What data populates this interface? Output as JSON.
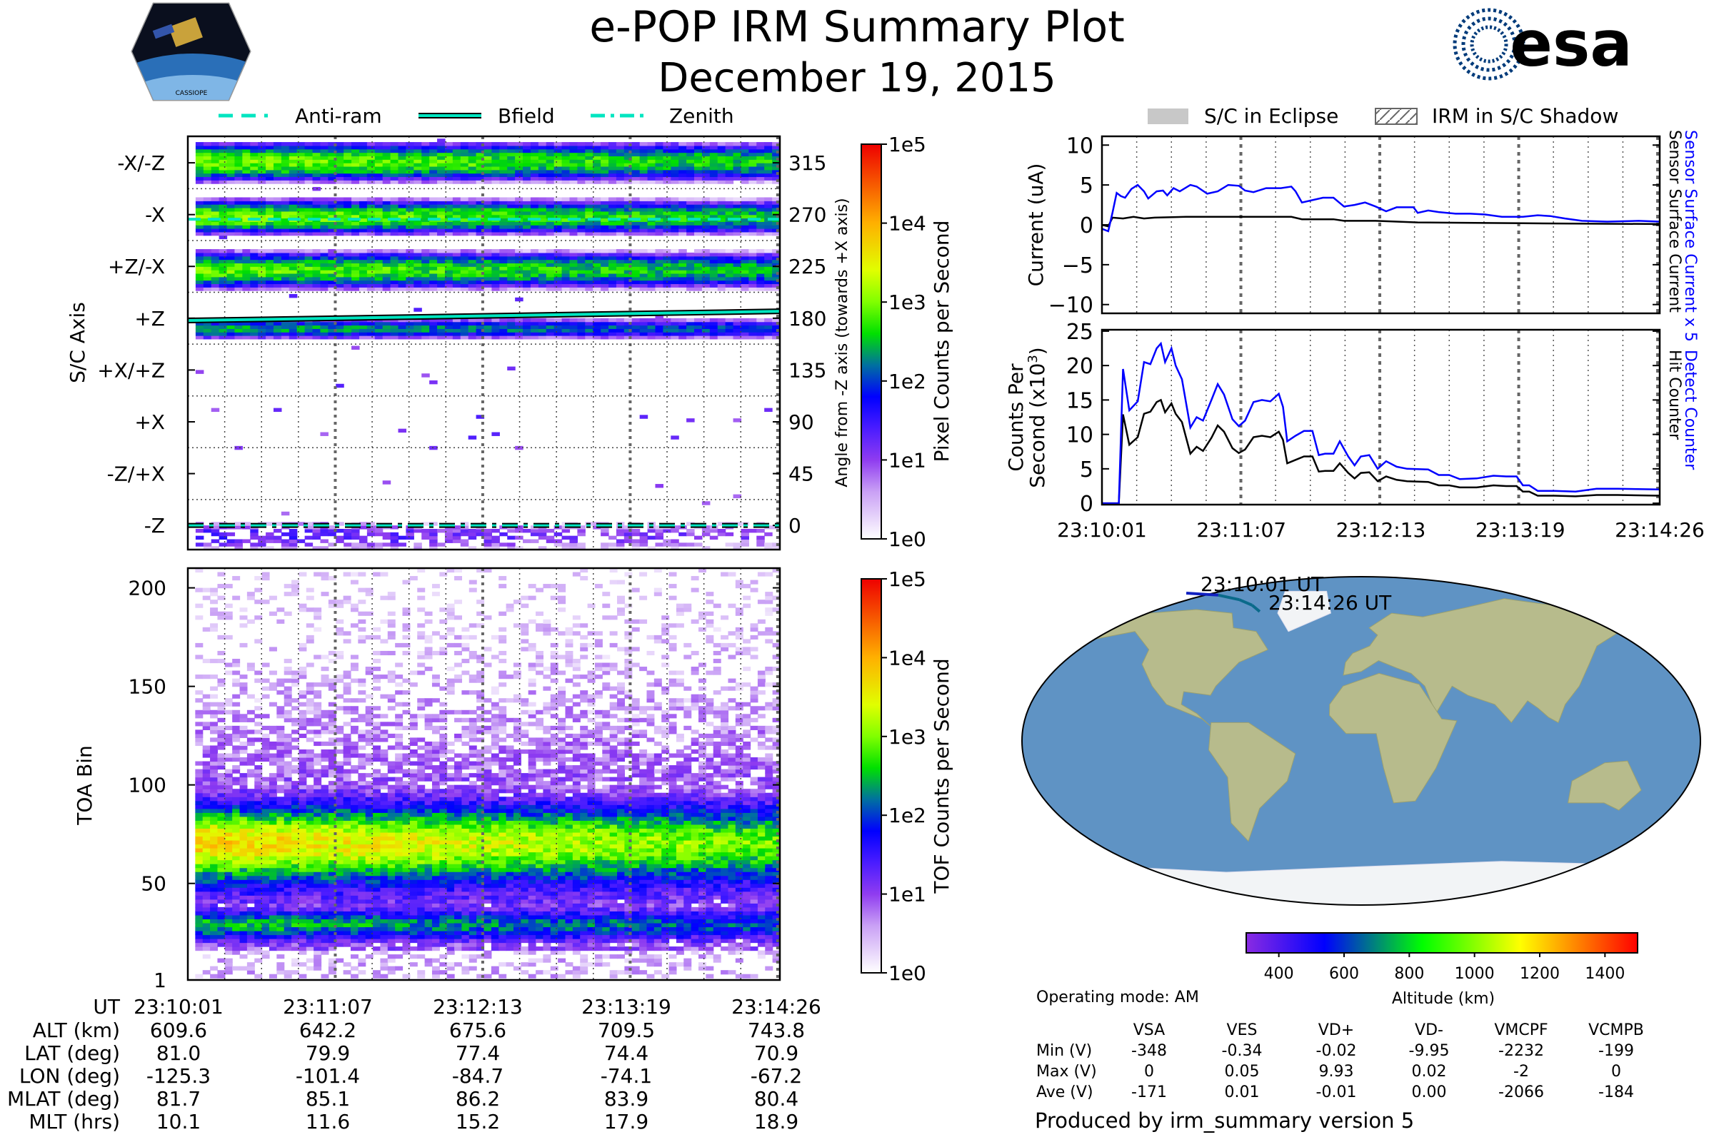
{
  "header": {
    "title": "e-POP IRM Summary Plot",
    "date": "December 19, 2015"
  },
  "logos": {
    "left_text": "CASSIOPE",
    "right_text": "esa"
  },
  "legend_left": [
    {
      "label": "Anti-ram",
      "style": "dashed"
    },
    {
      "label": "Bfield",
      "style": "solid"
    },
    {
      "label": "Zenith",
      "style": "dashdot"
    }
  ],
  "legend_right": [
    {
      "label": "S/C in Eclipse"
    },
    {
      "label": "IRM in S/C Shadow"
    }
  ],
  "colors": {
    "line_cyan": "#00e5c0",
    "series_blue": "#0000ff",
    "series_black": "#000000",
    "eclipse_gray": "#c8c8c8",
    "map_ocean": "#5f93c4",
    "map_land": "#b7bb8c",
    "map_ice": "#f2f4f6",
    "esa_blue": "#003b7a"
  },
  "chart_data": [
    {
      "id": "pixel_spectrogram",
      "type": "heatmap",
      "ylabel": "S/C Axis",
      "y2label": "Angle from -Z axis (towards +X axis)",
      "ylim": [
        -21,
        338
      ],
      "xlim_seconds": [
        0,
        265
      ],
      "y_axis_names": [
        {
          "angle": 315,
          "label": "-X/-Z"
        },
        {
          "angle": 270,
          "label": "-X"
        },
        {
          "angle": 225,
          "label": "+Z/-X"
        },
        {
          "angle": 180,
          "label": "+Z"
        },
        {
          "angle": 135,
          "label": "+X/+Z"
        },
        {
          "angle": 90,
          "label": "+X"
        },
        {
          "angle": 45,
          "label": "-Z/+X"
        },
        {
          "angle": 0,
          "label": "-Z"
        }
      ],
      "y2_ticks": [
        0,
        45,
        90,
        135,
        180,
        225,
        270,
        315
      ],
      "bands": [
        {
          "center": 316,
          "half_width": 18,
          "peak_log10": 3.0
        },
        {
          "center": 268,
          "half_width": 16,
          "peak_log10": 3.0
        },
        {
          "center": 222,
          "half_width": 17,
          "peak_log10": 2.9
        },
        {
          "center": 171,
          "half_width": 9,
          "peak_log10": 2.4
        },
        {
          "center": -9,
          "half_width": 12,
          "peak_log10": 1.4
        }
      ],
      "overlay_lines": {
        "anti_ram_angle": 266,
        "zenith_angle": 0,
        "bfield_angle_start": 178,
        "bfield_angle_end": 186
      },
      "colorbar": {
        "label": "Pixel Counts per Second",
        "ticks": [
          "1e0",
          "1e1",
          "1e2",
          "1e3",
          "1e4",
          "1e5"
        ],
        "range_log10": [
          0,
          5
        ]
      }
    },
    {
      "id": "tof_spectrogram",
      "type": "heatmap",
      "ylabel": "TOA Bin",
      "ylim": [
        1,
        210
      ],
      "yticks": [
        1,
        50,
        100,
        150,
        200
      ],
      "xlim_seconds": [
        0,
        265
      ],
      "components": [
        {
          "center": 70,
          "sigma": 14,
          "peak_log10": 2.9
        },
        {
          "center": 28,
          "sigma": 6,
          "peak_log10": 2.0
        }
      ],
      "colorbar": {
        "label": "TOF Counts per Second",
        "ticks": [
          "1e0",
          "1e1",
          "1e2",
          "1e3",
          "1e4",
          "1e5"
        ],
        "range_log10": [
          0,
          5
        ]
      }
    },
    {
      "id": "sensor_current",
      "type": "line",
      "ylabel": "Current (uA)",
      "ylim": [
        -11.1,
        11.1
      ],
      "yticks": [
        10,
        5,
        0,
        -5,
        -10
      ],
      "xlim_seconds": [
        0,
        265
      ],
      "series": [
        {
          "name": "Sensor Surface Current x 5",
          "color": "#0000ff",
          "t": [
            0,
            3,
            5,
            7,
            9,
            11,
            14,
            17,
            20,
            22,
            26,
            29,
            31,
            34,
            37,
            42,
            45,
            50,
            55,
            60,
            65,
            68,
            72,
            78,
            85,
            90,
            92,
            95,
            100,
            105,
            110,
            115,
            120,
            125,
            130,
            135,
            140,
            148,
            150,
            155,
            160,
            168,
            175,
            182,
            190,
            200,
            207,
            213,
            220,
            228,
            240,
            255,
            265
          ],
          "values": [
            -0.5,
            -0.8,
            1.5,
            4,
            3.6,
            3.4,
            4.5,
            5,
            4.2,
            3.3,
            4.2,
            4.3,
            3.7,
            4.6,
            4.2,
            5,
            4.8,
            3.9,
            4.2,
            5,
            4.9,
            4.3,
            4.1,
            4.6,
            4.6,
            4.8,
            4.2,
            2.8,
            3.1,
            3.4,
            3.4,
            2.3,
            2.5,
            2.8,
            2.3,
            1.7,
            2.2,
            2.2,
            1.5,
            1.8,
            1.6,
            1.4,
            1.4,
            1.3,
            1.0,
            1.0,
            1.2,
            1.1,
            0.8,
            0.5,
            0.4,
            0.5,
            0.4
          ]
        },
        {
          "name": "Sensor Surface Current",
          "color": "#000000",
          "t": [
            0,
            3,
            5,
            10,
            15,
            20,
            25,
            40,
            60,
            90,
            95,
            110,
            115,
            130,
            140,
            150,
            200,
            265
          ],
          "values": [
            0,
            -0.2,
            0.9,
            0.8,
            1,
            0.8,
            0.9,
            1,
            1,
            1,
            0.7,
            0.7,
            0.5,
            0.5,
            0.4,
            0.3,
            0.2,
            0.1
          ]
        }
      ]
    },
    {
      "id": "counts",
      "type": "line",
      "ylabel": "Counts Per Second (x10^3)",
      "ylim": [
        -0.2,
        25.2
      ],
      "yticks": [
        25,
        20,
        15,
        10,
        5,
        0
      ],
      "xticks": [
        "23:10:01",
        "23:11:07",
        "23:12:13",
        "23:13:19",
        "23:14:26"
      ],
      "xlim_seconds": [
        0,
        265
      ],
      "series": [
        {
          "name": "Detect Counter",
          "color": "#0000ff",
          "t": [
            0,
            8,
            10,
            13,
            17,
            20,
            23,
            26,
            28,
            30,
            33,
            35,
            38,
            42,
            45,
            48,
            52,
            55,
            58,
            62,
            65,
            68,
            72,
            76,
            80,
            84,
            86,
            88,
            92,
            96,
            100,
            103,
            106,
            110,
            113,
            117,
            120,
            123,
            127,
            131,
            135,
            140,
            145,
            155,
            160,
            165,
            170,
            178,
            186,
            192,
            197,
            200,
            203,
            207,
            215,
            225,
            235,
            245,
            265
          ],
          "values": [
            0,
            0,
            19.5,
            13.5,
            14.8,
            20.5,
            20.2,
            22.5,
            23.2,
            20.5,
            22.5,
            20,
            18,
            11,
            12.5,
            12,
            15,
            17.3,
            15.8,
            12.2,
            11.2,
            12,
            14.7,
            15,
            14.8,
            15.9,
            14,
            9,
            9.8,
            10.5,
            10.5,
            7,
            7.2,
            7.2,
            9,
            6.8,
            5.5,
            6.8,
            7,
            5,
            6.1,
            5.3,
            5,
            4.9,
            4.1,
            4.1,
            3.5,
            3.6,
            4,
            3.9,
            3.9,
            2.6,
            2.6,
            1.8,
            1.8,
            1.7,
            2.1,
            2.1,
            2.0
          ]
        },
        {
          "name": "Hit Counter",
          "color": "#000000",
          "t": [
            0,
            8,
            10,
            13,
            17,
            20,
            23,
            26,
            28,
            30,
            33,
            35,
            38,
            42,
            45,
            48,
            52,
            55,
            58,
            62,
            65,
            68,
            72,
            76,
            80,
            84,
            86,
            88,
            92,
            96,
            100,
            103,
            106,
            110,
            113,
            117,
            120,
            123,
            127,
            131,
            135,
            140,
            145,
            155,
            160,
            165,
            170,
            178,
            186,
            192,
            197,
            200,
            203,
            207,
            215,
            225,
            235,
            245,
            265
          ],
          "values": [
            0,
            0,
            12.9,
            8.5,
            9.6,
            13,
            13.3,
            14.7,
            15,
            13.2,
            14.5,
            13,
            11.8,
            7.2,
            8.2,
            7.6,
            9.5,
            11.3,
            10.4,
            8,
            7.3,
            7.8,
            9.6,
            9.8,
            9.6,
            10.4,
            9.2,
            5.8,
            6.3,
            6.8,
            6.8,
            4.6,
            4.7,
            4.7,
            5.8,
            4.4,
            3.6,
            4.4,
            4.5,
            3.2,
            3.9,
            3.4,
            3.2,
            3.1,
            2.6,
            2.6,
            2.3,
            2.3,
            2.6,
            2.5,
            2.5,
            1.7,
            1.7,
            1.1,
            1.1,
            1.0,
            1.2,
            1.2,
            1.1
          ]
        }
      ]
    },
    {
      "id": "ground_track_map",
      "type": "scatter",
      "track": {
        "lat": [
          81.0,
          79.9,
          77.4,
          74.4,
          70.9
        ],
        "lon": [
          -125.3,
          -101.4,
          -84.7,
          -74.1,
          -67.2
        ],
        "alt_km": [
          609.6,
          642.2,
          675.6,
          709.5,
          743.8
        ]
      },
      "start_label": "23:10:01 UT",
      "end_label": "23:14:26 UT",
      "colorbar": {
        "label": "Altitude (km)",
        "ticks": [
          400,
          600,
          800,
          1000,
          1200,
          1400
        ],
        "range": [
          300,
          1500
        ]
      }
    }
  ],
  "ephemeris": {
    "rows": [
      {
        "label": "UT",
        "values": [
          "23:10:01",
          "23:11:07",
          "23:12:13",
          "23:13:19",
          "23:14:26"
        ]
      },
      {
        "label": "ALT (km)",
        "values": [
          "609.6",
          "642.2",
          "675.6",
          "709.5",
          "743.8"
        ]
      },
      {
        "label": "LAT (deg)",
        "values": [
          "81.0",
          "79.9",
          "77.4",
          "74.4",
          "70.9"
        ]
      },
      {
        "label": "LON (deg)",
        "values": [
          "-125.3",
          "-101.4",
          "-84.7",
          "-74.1",
          "-67.2"
        ]
      },
      {
        "label": "MLAT (deg)",
        "values": [
          "81.7",
          "85.1",
          "86.2",
          "83.9",
          "80.4"
        ]
      },
      {
        "label": "MLT (hrs)",
        "values": [
          "10.1",
          "11.6",
          "15.2",
          "17.9",
          "18.9"
        ]
      }
    ]
  },
  "operating_mode": "Operating mode: AM",
  "voltage_table": {
    "columns": [
      "VSA",
      "VES",
      "VD+",
      "VD-",
      "VMCPF",
      "VCMPB"
    ],
    "rows": [
      {
        "label": "Min (V)",
        "values": [
          "-348",
          "-0.34",
          "-0.02",
          "-9.95",
          "-2232",
          "-199"
        ]
      },
      {
        "label": "Max (V)",
        "values": [
          "0",
          "0.05",
          "9.93",
          "0.02",
          "-2",
          "0"
        ]
      },
      {
        "label": "Ave (V)",
        "values": [
          "-171",
          "0.01",
          "-0.01",
          "0.00",
          "-2066",
          "-184"
        ]
      }
    ]
  },
  "footer": "Produced by irm_summary version 5"
}
